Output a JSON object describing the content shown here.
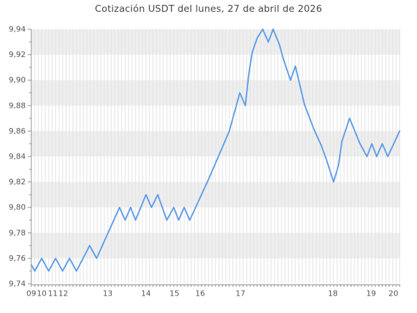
{
  "chart_data": {
    "type": "line",
    "title": "Cotización USDT del lunes, 27 de abril de 2026",
    "series": [
      {
        "name": "USDT",
        "color": "#5f9de8",
        "points": [
          [
            0,
            9.755
          ],
          [
            5,
            9.75
          ],
          [
            15,
            9.76
          ],
          [
            25,
            9.75
          ],
          [
            35,
            9.76
          ],
          [
            45,
            9.75
          ],
          [
            55,
            9.76
          ],
          [
            65,
            9.75
          ],
          [
            84,
            9.77
          ],
          [
            94,
            9.76
          ],
          [
            127,
            9.8
          ],
          [
            135,
            9.79
          ],
          [
            143,
            9.8
          ],
          [
            150,
            9.79
          ],
          [
            165,
            9.81
          ],
          [
            173,
            9.8
          ],
          [
            182,
            9.81
          ],
          [
            195,
            9.79
          ],
          [
            205,
            9.8
          ],
          [
            212,
            9.79
          ],
          [
            220,
            9.8
          ],
          [
            228,
            9.79
          ],
          [
            255,
            9.822
          ],
          [
            285,
            9.86
          ],
          [
            300,
            9.89
          ],
          [
            308,
            9.88
          ],
          [
            313,
            9.905
          ],
          [
            318,
            9.922
          ],
          [
            325,
            9.933
          ],
          [
            333,
            9.94
          ],
          [
            341,
            9.93
          ],
          [
            348,
            9.94
          ],
          [
            357,
            9.928
          ],
          [
            363,
            9.916
          ],
          [
            373,
            9.9
          ],
          [
            380,
            9.911
          ],
          [
            393,
            9.881
          ],
          [
            407,
            9.861
          ],
          [
            417,
            9.849
          ],
          [
            425,
            9.837
          ],
          [
            435,
            9.82
          ],
          [
            442,
            9.833
          ],
          [
            447,
            9.852
          ],
          [
            458,
            9.87
          ],
          [
            473,
            9.85
          ],
          [
            483,
            9.84
          ],
          [
            490,
            9.85
          ],
          [
            497,
            9.84
          ],
          [
            505,
            9.85
          ],
          [
            513,
            9.84
          ],
          [
            530,
            9.86
          ]
        ]
      }
    ],
    "ylim": [
      9.74,
      9.94
    ],
    "y_ticks": [
      {
        "v": 9.94,
        "label": "9,94"
      },
      {
        "v": 9.93
      },
      {
        "v": 9.92,
        "label": "9,92"
      },
      {
        "v": 9.91
      },
      {
        "v": 9.9,
        "label": "9,90"
      },
      {
        "v": 9.89
      },
      {
        "v": 9.88,
        "label": "9,88"
      },
      {
        "v": 9.87
      },
      {
        "v": 9.86,
        "label": "9,86"
      },
      {
        "v": 9.85
      },
      {
        "v": 9.84,
        "label": "9,84"
      },
      {
        "v": 9.83
      },
      {
        "v": 9.82,
        "label": "9,82"
      },
      {
        "v": 9.81
      },
      {
        "v": 9.8,
        "label": "9,80"
      },
      {
        "v": 9.79
      },
      {
        "v": 9.78,
        "label": "9,78"
      },
      {
        "v": 9.77
      },
      {
        "v": 9.76,
        "label": "9,76"
      },
      {
        "v": 9.75
      },
      {
        "v": 9.74,
        "label": "9,74"
      }
    ],
    "x_ticks": [
      {
        "px": 0,
        "label": "09"
      },
      {
        "px": 15,
        "label": "10"
      },
      {
        "px": 31,
        "label": "11"
      },
      {
        "px": 46,
        "label": "12"
      },
      {
        "px": 110,
        "label": "13"
      },
      {
        "px": 165,
        "label": "14"
      },
      {
        "px": 206,
        "label": "15"
      },
      {
        "px": 243,
        "label": "16"
      },
      {
        "px": 301,
        "label": "17"
      },
      {
        "px": 434,
        "label": "18"
      },
      {
        "px": 489,
        "label": "19"
      },
      {
        "px": 521,
        "label": "20"
      }
    ],
    "shade_bands": [
      [
        9.92,
        9.94
      ],
      [
        9.88,
        9.9
      ],
      [
        9.84,
        9.86
      ],
      [
        9.8,
        9.82
      ],
      [
        9.76,
        9.78
      ]
    ],
    "grid": true,
    "legend": "none",
    "layout": {
      "plot_left": 45,
      "plot_right": 576,
      "plot_top": 42,
      "plot_bottom": 408,
      "axis_y": 409.5,
      "point_spacing": 5,
      "n_intervals": 106
    },
    "colors": {
      "line": "#5f9de8",
      "band": "#eeeeee",
      "grid": "#e2e2e2",
      "axis": "#8c8c8c",
      "tick": "#8c8c8c",
      "tick_label": "#555555",
      "title": "#454545"
    }
  }
}
